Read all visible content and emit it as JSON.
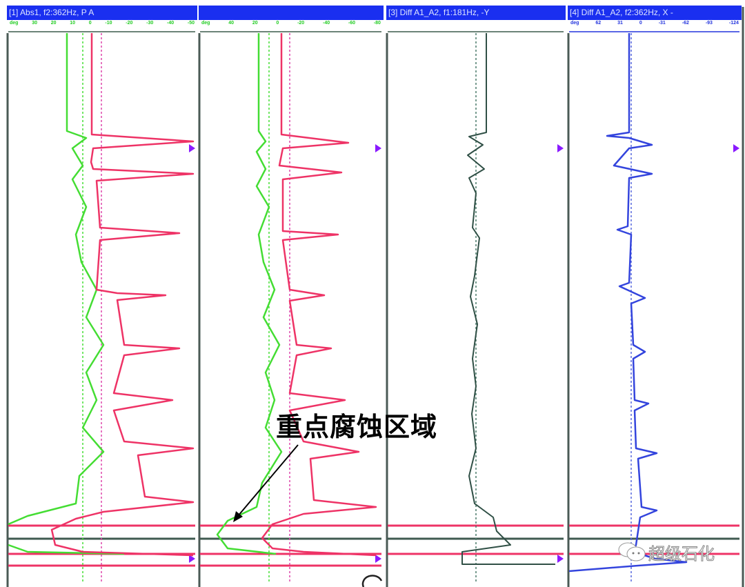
{
  "panels": [
    {
      "title": "[1] Abs1, f2:362Hz, P A",
      "scale": [
        "deg",
        "30",
        "20",
        "10",
        "0",
        "-10",
        "-20",
        "-30",
        "-40",
        "-50"
      ],
      "scale_color": "#22cc22"
    },
    {
      "title": "",
      "scale": [
        "deg",
        "40",
        "20",
        "0",
        "-20",
        "-40",
        "-60",
        "-80"
      ],
      "scale_color": "#22cc22"
    },
    {
      "title": "[3] Diff A1_A2, f1:181Hz, -Y",
      "scale": [],
      "scale_color": "#2a5a4a"
    },
    {
      "title": "[4] Diff A1_A2, f2:362Hz, X -",
      "scale": [
        "deg",
        "62",
        "31",
        "0",
        "-31",
        "-62",
        "-93",
        "-124"
      ],
      "scale_color": "#2233dd"
    }
  ],
  "annotation": {
    "label": "重点腐蚀区域"
  },
  "watermark": {
    "text": "超级石化",
    "icon": "wechat-icon"
  },
  "colors": {
    "header": "#1a2ff0",
    "trace_green": "#44dd33",
    "trace_red": "#ee3366",
    "trace_dark": "#2f4f45",
    "trace_blue": "#3344dd",
    "marker": "#8a1aff"
  }
}
